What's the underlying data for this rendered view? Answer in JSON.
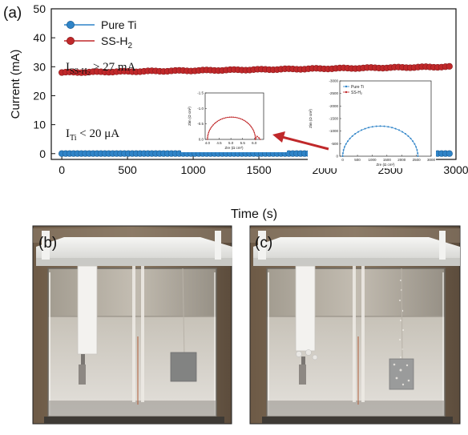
{
  "panel_labels": {
    "a": "(a)",
    "b": "(b)",
    "c": "(c)"
  },
  "annotations": {
    "ss_current": {
      "symbol": "I",
      "sub": "SS-H",
      "sub2": "2",
      "text": " >  27 mA"
    },
    "ti_current": {
      "symbol": "I",
      "sub": "Ti",
      "text": "  <  20 μA"
    }
  },
  "colors": {
    "pure_ti": "#2f84c8",
    "ss_h2": "#c0282a",
    "arrow": "#c0282a"
  },
  "chart_data": [
    {
      "type": "scatter",
      "xlabel": "Time (s)",
      "ylabel": "Current (mA)",
      "xlim": [
        -80,
        3000
      ],
      "ylim": [
        -2,
        50
      ],
      "xticks": [
        0,
        500,
        1000,
        1500,
        2000,
        2500,
        3000
      ],
      "yticks": [
        0,
        10,
        20,
        30,
        40,
        50
      ],
      "legend": {
        "placement": "top-left",
        "entries": [
          "Pure Ti",
          "SS-H2"
        ]
      },
      "series": [
        {
          "name": "Pure Ti",
          "marker": "circle",
          "x_start": 0,
          "x_end": 2950,
          "n_points": 100,
          "y_start": 0.02,
          "y_end": 0.02
        },
        {
          "name": "SS-H2",
          "marker": "circle",
          "x_start": 0,
          "x_end": 2950,
          "n_points": 100,
          "y_start": 28.0,
          "y_end": 30.0
        }
      ]
    },
    {
      "type": "line",
      "inset": "left",
      "xlabel": "Zre (Ω cm²)",
      "ylabel": "Zim (Ω cm²)",
      "xlim": [
        3.9,
        6.4
      ],
      "ylim": [
        0,
        -1.5
      ],
      "xticks": [
        4.0,
        4.5,
        5.0,
        5.5,
        6.0,
        6.5
      ],
      "yticks": [
        0.0,
        -0.5,
        -1.0,
        -1.5
      ],
      "series": [
        {
          "name": "SS-H2",
          "shape": "semicircle",
          "zre_start": 4.0,
          "zre_end": 6.05,
          "zim_peak": -0.72,
          "tail": [
            [
              6.05,
              0.0
            ],
            [
              6.12,
              -0.1
            ],
            [
              6.2,
              -0.05
            ],
            [
              6.25,
              0.0
            ]
          ]
        }
      ]
    },
    {
      "type": "line",
      "inset": "right",
      "xlabel": "Zre (Ω cm²)",
      "ylabel": "Zim (Ω cm²)",
      "xlim": [
        -100,
        3000
      ],
      "ylim": [
        0,
        -3000
      ],
      "xticks": [
        0,
        500,
        1000,
        1500,
        2000,
        2500,
        3000
      ],
      "yticks": [
        0,
        -500,
        -1000,
        -1500,
        -2000,
        -2500,
        -3000
      ],
      "legend": {
        "placement": "top-left",
        "entries": [
          "Pure Ti",
          "SS-H2"
        ]
      },
      "series": [
        {
          "name": "Pure Ti",
          "shape": "semicircle",
          "zre_start": 0,
          "zre_end": 2550,
          "zim_peak": -1200
        }
      ]
    }
  ]
}
